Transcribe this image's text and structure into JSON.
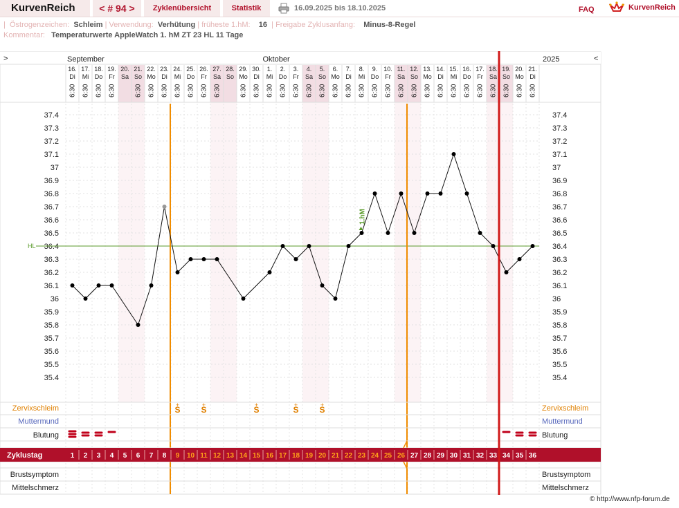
{
  "header": {
    "logo": "KurvenReich",
    "cycle_nav": "< # 94 >",
    "overview": "Zyklenübersicht",
    "stats": "Statistik",
    "date_range": "16.09.2025 bis 18.10.2025",
    "faq": "FAQ",
    "brand": "KurvenReich"
  },
  "info": {
    "oestrogen_label": "Östrogenzeichen:",
    "oestrogen_value": "Schleim",
    "use_label": "Verwendung:",
    "use_value": "Verhütung",
    "earliest_label": "früheste 1.hM:",
    "earliest_value": "16",
    "release_label": "Freigabe Zyklusanfang:",
    "release_value": "Minus-8-Regel",
    "comment_label": "Kommentar:",
    "comment_value": "Temperaturwerte AppleWatch 1. hM ZT 23 HL 11 Tage"
  },
  "chart_data": {
    "type": "line",
    "month_labels": [
      {
        "label": "September",
        "start_index": 0
      },
      {
        "label": "Oktober",
        "start_index": 15
      }
    ],
    "year_label": "2025",
    "nav_prev": ">",
    "nav_next": "<",
    "days": [
      "16.",
      "17.",
      "18.",
      "19.",
      "20.",
      "21.",
      "22.",
      "23.",
      "24.",
      "25.",
      "26.",
      "27.",
      "28.",
      "29.",
      "30.",
      "1.",
      "2.",
      "3.",
      "4.",
      "5.",
      "6.",
      "7.",
      "8.",
      "9.",
      "10.",
      "11.",
      "12.",
      "13.",
      "14.",
      "15.",
      "16.",
      "17.",
      "18.",
      "19.",
      "20.",
      "21."
    ],
    "weekdays": [
      "Di",
      "Mi",
      "Do",
      "Fr",
      "Sa",
      "So",
      "Mo",
      "Di",
      "Mi",
      "Do",
      "Fr",
      "Sa",
      "So",
      "Mo",
      "Di",
      "Mi",
      "Do",
      "Fr",
      "Sa",
      "So",
      "Mo",
      "Di",
      "Mi",
      "Do",
      "Fr",
      "Sa",
      "So",
      "Mo",
      "Di",
      "Mi",
      "Do",
      "Fr",
      "Sa",
      "So",
      "Mo",
      "Di"
    ],
    "weekend": [
      false,
      false,
      false,
      false,
      true,
      true,
      false,
      false,
      false,
      false,
      false,
      true,
      true,
      false,
      false,
      false,
      false,
      false,
      true,
      true,
      false,
      false,
      false,
      false,
      false,
      true,
      true,
      false,
      false,
      false,
      false,
      false,
      true,
      true,
      false,
      false
    ],
    "times": [
      "6:30",
      "6:30",
      "6:30",
      "6:30",
      "",
      "6:30",
      "6:30",
      "6:30",
      "6:30",
      "6:30",
      "6:30",
      "6:30",
      "",
      "6:30",
      "6:30",
      "6:30",
      "6:30",
      "6:30",
      "6:30",
      "6:30",
      "6:30",
      "6:30",
      "6:30",
      "6:30",
      "6:30",
      "6:30",
      "6:30",
      "6:30",
      "6:30",
      "6:30",
      "6:30",
      "6:30",
      "6:30",
      "6:30",
      "6:30",
      "6:30"
    ],
    "cycle_days": [
      1,
      2,
      3,
      4,
      5,
      6,
      7,
      8,
      9,
      10,
      11,
      12,
      13,
      14,
      15,
      16,
      17,
      18,
      19,
      20,
      21,
      22,
      23,
      24,
      25,
      26,
      27,
      28,
      29,
      30,
      31,
      32,
      33,
      34,
      35,
      36
    ],
    "temperatures": [
      36.1,
      36.0,
      36.15,
      36.1,
      null,
      35.75,
      36.1,
      36.7,
      36.2,
      36.3,
      36.25,
      36.3,
      null,
      35.95,
      null,
      36.2,
      36.4,
      36.25,
      36.35,
      36.15,
      36.0,
      36.4,
      36.55,
      36.8,
      36.55,
      36.75,
      36.45,
      36.75,
      36.75,
      37.1,
      36.8,
      36.5,
      36.4,
      36.2,
      36.3,
      36.35
    ],
    "excluded": [
      false,
      false,
      false,
      false,
      false,
      false,
      false,
      true,
      false,
      false,
      false,
      false,
      false,
      false,
      false,
      false,
      false,
      false,
      false,
      false,
      false,
      false,
      false,
      false,
      false,
      false,
      false,
      false,
      false,
      false,
      false,
      false,
      false,
      false,
      false,
      false
    ],
    "y_ticks": [
      "37.4",
      "37.3",
      "37.2",
      "37.1",
      "37",
      "36.9",
      "36.8",
      "36.7",
      "36.6",
      "36.5",
      "36.4",
      "36.3",
      "36.2",
      "36.1",
      "36",
      "35.9",
      "35.8",
      "35.7",
      "35.6",
      "35.5",
      "35.4"
    ],
    "ylim": [
      35.4,
      37.4
    ],
    "coverline": {
      "label": "HL",
      "value": 36.4
    },
    "first_high_label": "1.hM",
    "first_high_index": 22,
    "orange_lines_after_index": [
      7,
      25
    ],
    "red_line_after_index": 32,
    "rows": {
      "cervical_label": "Zervixschleim",
      "cervix_label": "Muttermund",
      "bleeding_label": "Blutung",
      "cycle_label": "Zyklustag",
      "breast_label": "Brustsymptom",
      "pain_label": "Mittelschmerz"
    },
    "mucus_symbol": "S",
    "mucus_days": [
      8,
      10,
      14,
      17,
      19
    ],
    "bleeding": [
      3,
      2,
      2,
      1,
      0,
      0,
      0,
      0,
      0,
      0,
      0,
      0,
      0,
      0,
      0,
      0,
      0,
      0,
      0,
      0,
      0,
      0,
      0,
      0,
      0,
      0,
      0,
      0,
      0,
      0,
      0,
      0,
      0,
      1,
      2,
      2
    ],
    "colors": {
      "accent": "#b0102a",
      "orange": "#f08c00",
      "coverline": "#5a9a2a",
      "mucus": "#e08000",
      "cervix": "#5566bb"
    }
  },
  "footer": {
    "copyright": "© http://www.nfp-forum.de"
  }
}
